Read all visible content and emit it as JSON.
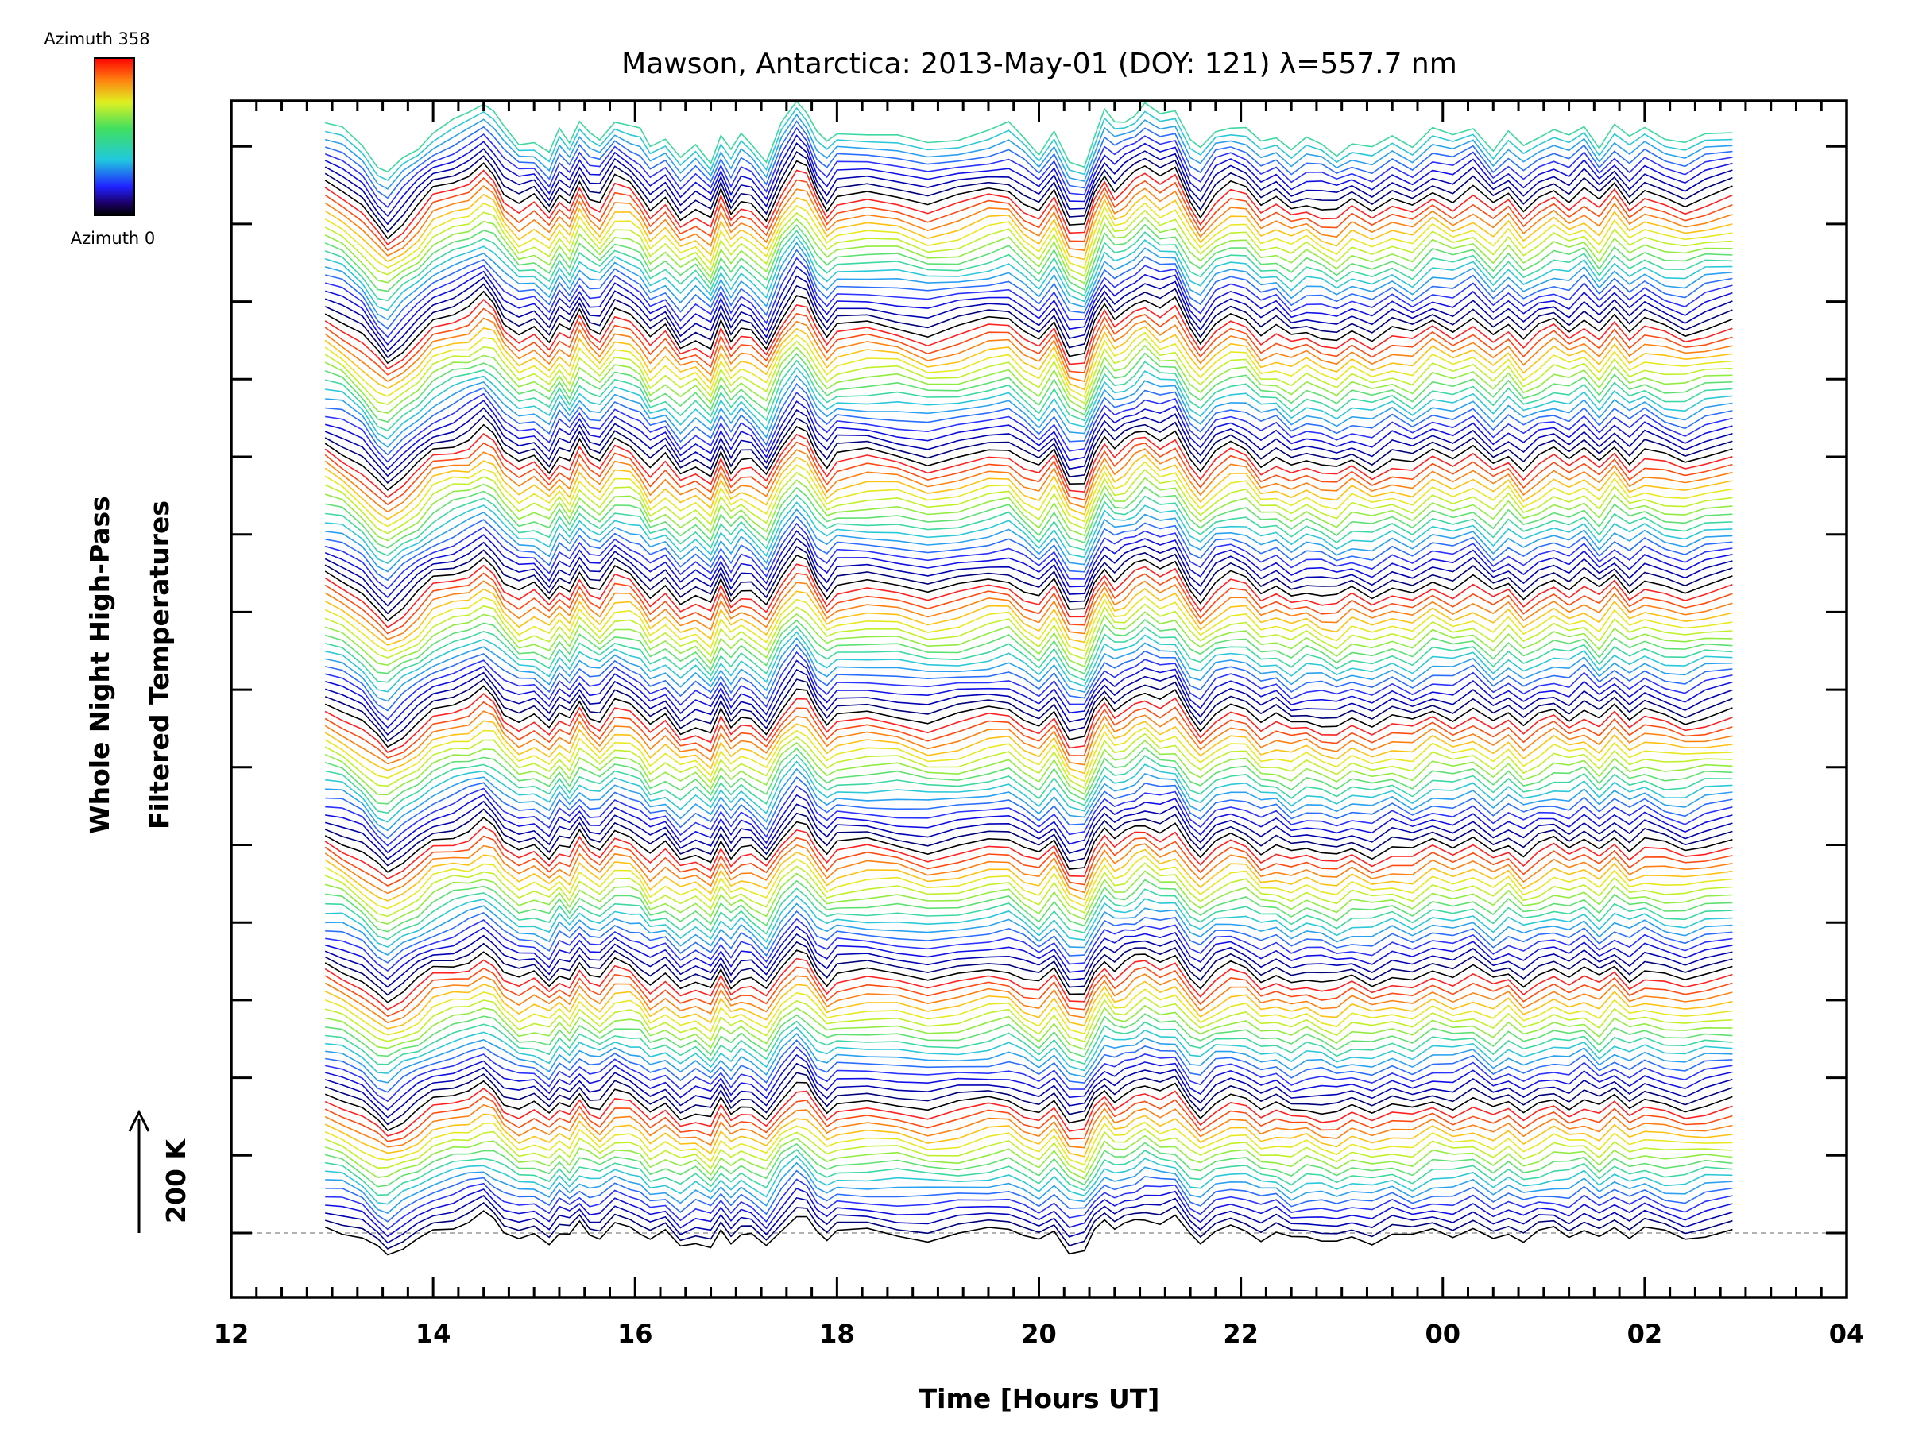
{
  "chart_data": {
    "type": "line",
    "title": "Mawson, Antarctica: 2013-May-01 (DOY: 121) λ=557.7 nm",
    "xlabel": "Time [Hours UT]",
    "ylabel_line1": "Whole Night High-Pass",
    "ylabel_line2": "Filtered Temperatures",
    "scale_label": "200 K",
    "x_ticks": [
      "12",
      "14",
      "16",
      "18",
      "20",
      "22",
      "00",
      "02",
      "04"
    ],
    "xlim_hours": [
      12,
      28
    ],
    "colorbar": {
      "top_label": "Azimuth  358",
      "bottom_label": "Azimuth  0",
      "min": 0,
      "max": 358
    },
    "n_traces": 145,
    "data_start_hours": 12.93,
    "data_end_hours": 26.87,
    "series_template": {
      "x_hours": [
        12.93,
        13.1,
        13.3,
        13.45,
        13.55,
        13.7,
        13.85,
        14.0,
        14.2,
        14.35,
        14.5,
        14.6,
        14.7,
        14.85,
        15.0,
        15.15,
        15.25,
        15.35,
        15.45,
        15.55,
        15.65,
        15.8,
        15.95,
        16.05,
        16.15,
        16.3,
        16.45,
        16.6,
        16.75,
        16.85,
        16.95,
        17.05,
        17.15,
        17.3,
        17.45,
        17.6,
        17.7,
        17.8,
        17.9,
        18.0,
        18.3,
        18.6,
        18.9,
        19.2,
        19.5,
        19.7,
        19.85,
        20.0,
        20.15,
        20.3,
        20.45,
        20.55,
        20.65,
        20.75,
        20.85,
        20.95,
        21.05,
        21.2,
        21.35,
        21.5,
        21.6,
        21.75,
        21.9,
        22.05,
        22.2,
        22.35,
        22.5,
        22.65,
        22.8,
        22.95,
        23.1,
        23.3,
        23.5,
        23.7,
        23.9,
        24.1,
        24.3,
        24.5,
        24.65,
        24.8,
        24.95,
        25.1,
        25.25,
        25.4,
        25.55,
        25.7,
        25.85,
        26.0,
        26.2,
        26.4,
        26.6,
        26.87
      ],
      "y_kelvin": [
        25,
        10,
        -20,
        -55,
        -70,
        -45,
        -20,
        10,
        25,
        35,
        55,
        40,
        10,
        -15,
        -5,
        -30,
        5,
        -15,
        25,
        0,
        -10,
        30,
        20,
        5,
        -25,
        -5,
        -40,
        -20,
        -45,
        5,
        -30,
        -5,
        -15,
        -45,
        20,
        60,
        45,
        5,
        -20,
        0,
        5,
        0,
        -15,
        -5,
        10,
        15,
        -10,
        -30,
        10,
        -50,
        -55,
        0,
        40,
        15,
        25,
        40,
        55,
        35,
        45,
        -10,
        -30,
        5,
        20,
        15,
        -15,
        -5,
        -25,
        -10,
        -20,
        -30,
        -10,
        -25,
        -5,
        -20,
        10,
        -5,
        15,
        -20,
        5,
        -25,
        -5,
        10,
        -5,
        15,
        -15,
        20,
        -10,
        10,
        -5,
        -15,
        0,
        10
      ]
    },
    "trace_colors": [
      "#000000",
      "#00007a",
      "#0000b2",
      "#1010e6",
      "#2a32ff",
      "#2a6eff",
      "#29a0f0",
      "#2bc8d8",
      "#3cd8a0",
      "#5ee070",
      "#90ec40",
      "#c0f028",
      "#e8e820",
      "#ffc010",
      "#ff8010",
      "#ff4a10",
      "#ff2020"
    ]
  }
}
